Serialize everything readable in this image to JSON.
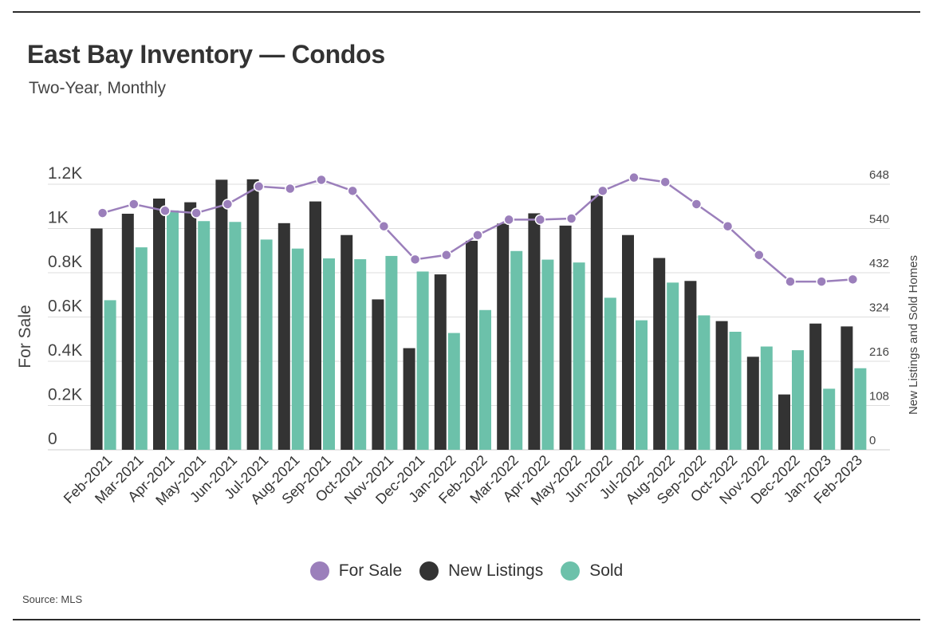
{
  "header": {
    "title": "East Bay Inventory — Condos",
    "subtitle": "Two-Year, Monthly"
  },
  "footer": {
    "source": "Source: MLS"
  },
  "colors": {
    "for_sale": "#9b7fbb",
    "new_listings": "#333333",
    "sold": "#6cc1aa",
    "grid": "#dddddd"
  },
  "chart_data": {
    "type": "bar",
    "categories": [
      "Feb-2021",
      "Mar-2021",
      "Apr-2021",
      "May-2021",
      "Jun-2021",
      "Jul-2021",
      "Aug-2021",
      "Sep-2021",
      "Oct-2021",
      "Nov-2021",
      "Dec-2021",
      "Jan-2022",
      "Feb-2022",
      "Mar-2022",
      "Apr-2022",
      "May-2022",
      "Jun-2022",
      "Jul-2022",
      "Aug-2022",
      "Sep-2022",
      "Oct-2022",
      "Nov-2022",
      "Dec-2022",
      "Jan-2023",
      "Feb-2023"
    ],
    "ylabel": "For Sale",
    "y2label": "New Listings and Sold Homes",
    "ylim": [
      0,
      1200
    ],
    "y2lim": [
      0,
      648
    ],
    "yticks": [
      "0",
      "0.2K",
      "0.4K",
      "0.6K",
      "0.8K",
      "1K",
      "1.2K"
    ],
    "y2ticks": [
      "0",
      "108",
      "216",
      "324",
      "432",
      "540",
      "648"
    ],
    "grid": true,
    "legend_position": "bottom",
    "series": [
      {
        "name": "For Sale",
        "type": "line",
        "axis": "left",
        "values": [
          1070,
          1110,
          1080,
          1070,
          1110,
          1190,
          1180,
          1220,
          1170,
          1010,
          860,
          880,
          970,
          1040,
          1040,
          1045,
          1170,
          1230,
          1210,
          1110,
          1010,
          880,
          760,
          760,
          770
        ]
      },
      {
        "name": "New Listings",
        "type": "bar",
        "axis": "right",
        "values": [
          540,
          576,
          613,
          604,
          659,
          660,
          553,
          606,
          524,
          367,
          248,
          428,
          510,
          552,
          577,
          547,
          620,
          524,
          468,
          412,
          314,
          227,
          135,
          308,
          301
        ]
      },
      {
        "name": "Sold",
        "type": "bar",
        "axis": "right",
        "values": [
          365,
          494,
          584,
          558,
          556,
          513,
          491,
          467,
          465,
          473,
          435,
          285,
          341,
          485,
          464,
          457,
          371,
          316,
          408,
          328,
          288,
          252,
          243,
          149,
          199
        ]
      }
    ]
  }
}
